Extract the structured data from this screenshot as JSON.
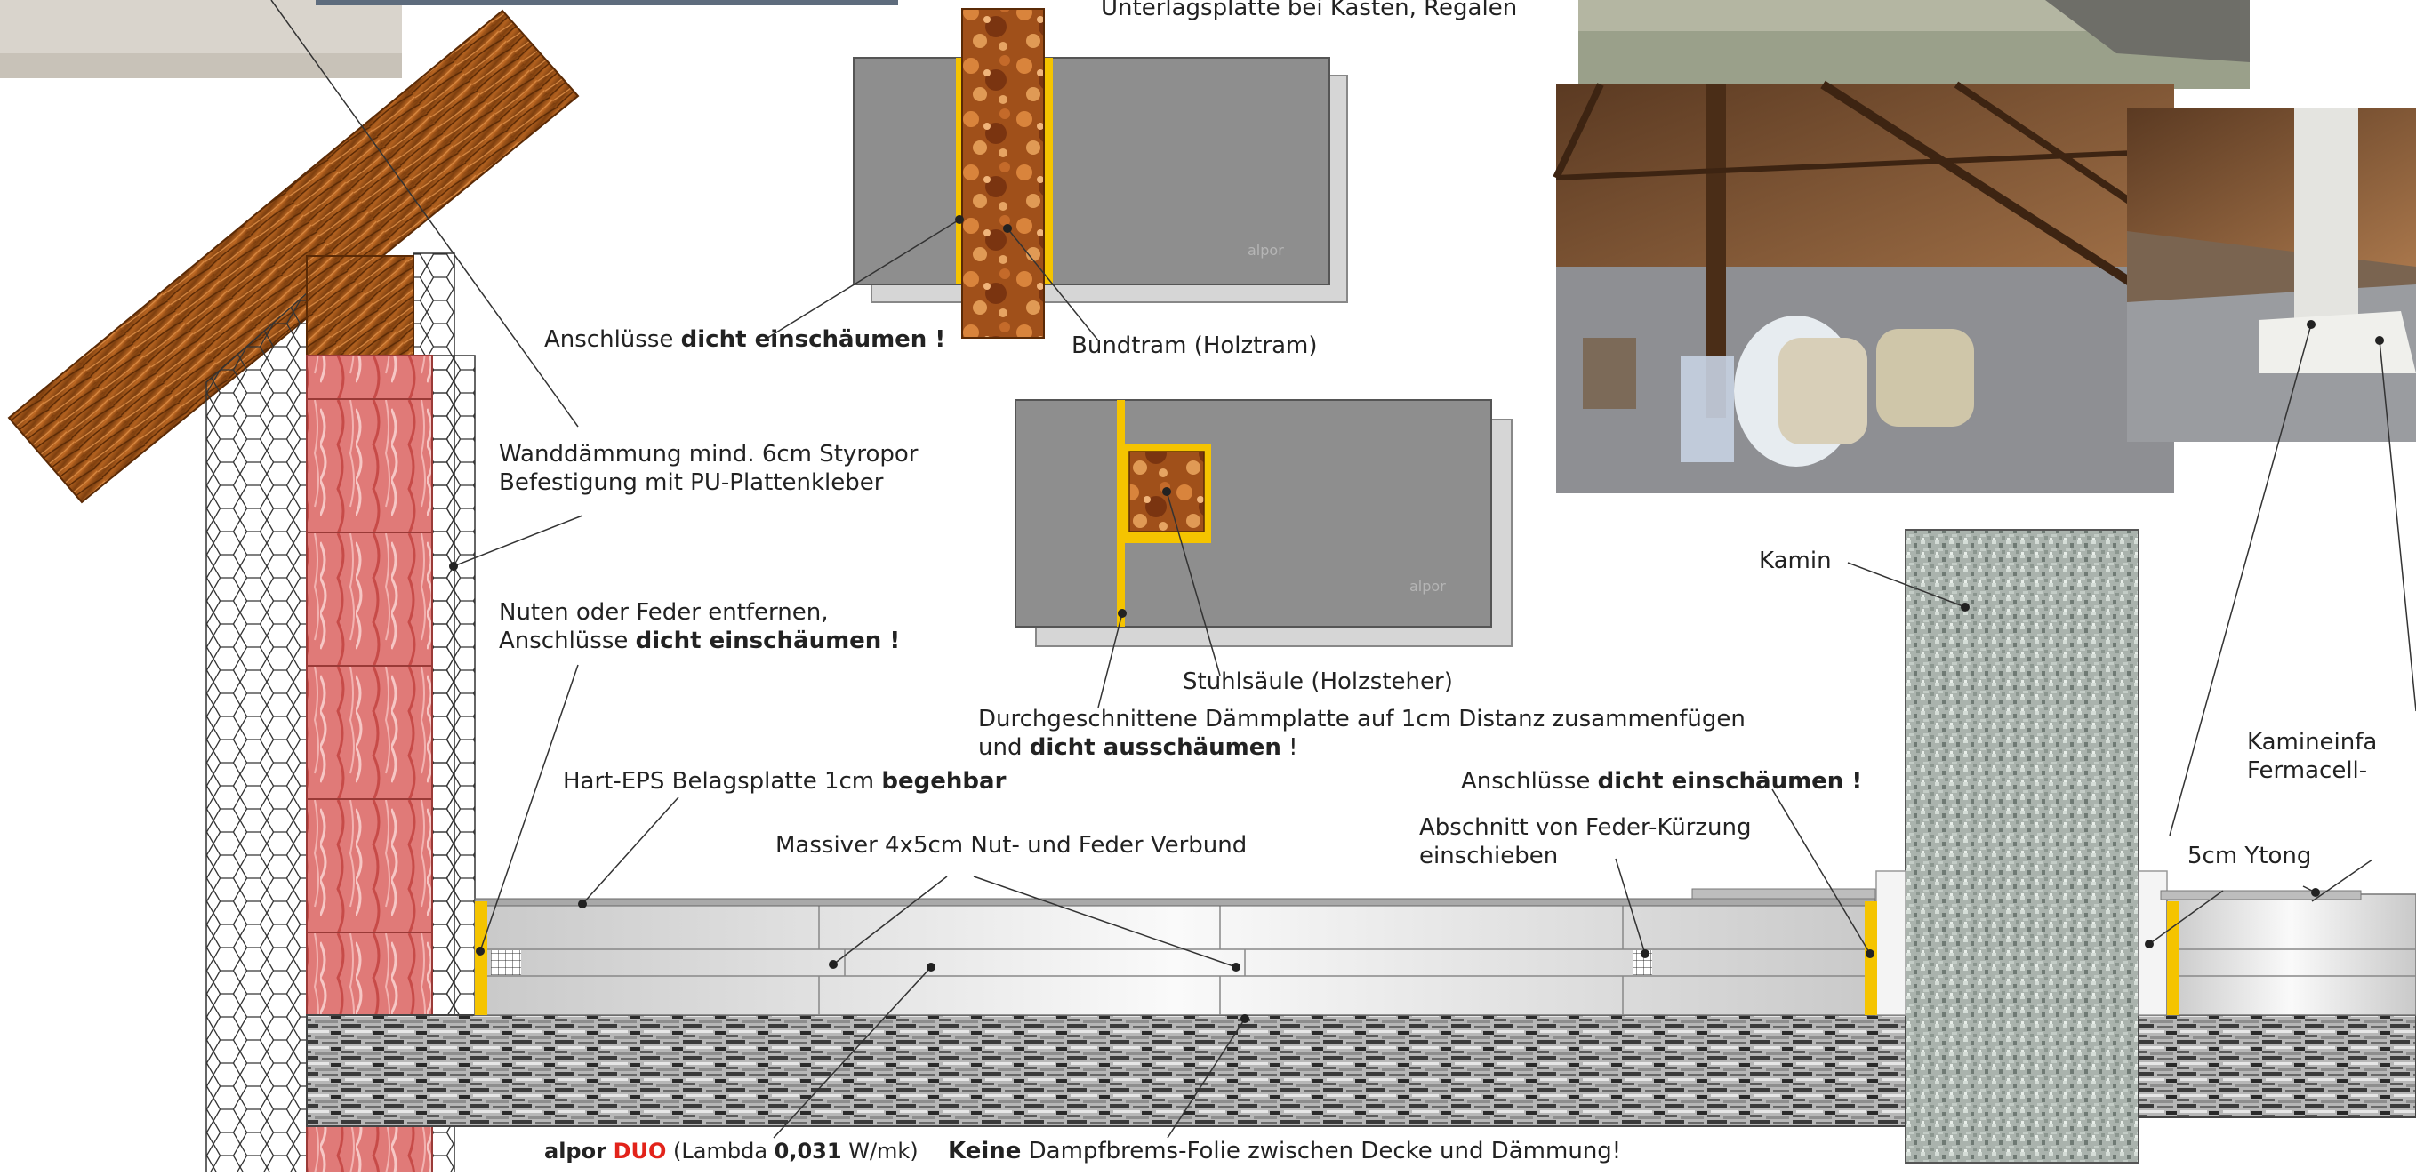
{
  "labels": {
    "regal": "Unterlagsplatte bei Kästen, Regalen",
    "anschluesse_left_pre": "Anschlüsse ",
    "anschluesse_left_bold": "dicht einschäumen !",
    "bundtram": "Bundtram (Holztram)",
    "wanddaemmung_1": "Wanddämmung mind. 6cm Styropor",
    "wanddaemmung_2": "Befestigung mit PU-Plattenkleber",
    "nuten_1": "Nuten oder Feder entfernen,",
    "nuten_2_pre": "Anschlüsse ",
    "nuten_2_bold": "dicht einschäumen !",
    "stuhlsaeule": "Stuhlsäule (Holzsteher)",
    "durchgeschnitten_1": "Durchgeschnittene Dämmplatte auf 1cm Distanz zusammenfügen",
    "durchgeschnitten_2_pre": "und ",
    "durchgeschnitten_2_bold": "dicht ausschäumen",
    "durchgeschnitten_2_post": " !",
    "hart_eps_pre": "Hart-EPS Belagsplatte 1cm ",
    "hart_eps_bold": "begehbar",
    "massiver": "Massiver 4x5cm Nut- und Feder Verbund",
    "kamin": "Kamin",
    "anschluesse_right_pre": "Anschlüsse ",
    "anschluesse_right_bold": "dicht einschäumen !",
    "abschnitt_1": "Abschnitt von Feder-Kürzung",
    "abschnitt_2": "einschieben",
    "ytong": "5cm Ytong",
    "kamineinfassung_1": "Kamineinfa",
    "kamineinfassung_2": "Fermacell-",
    "brand_alpor": "alpor",
    "brand_duo": "DUO",
    "brand_lambda_pre": "(Lambda ",
    "brand_lambda_value": "0,031",
    "brand_lambda_unit": " W/mk)",
    "keine_bold": "Keine",
    "keine_rest": " Dampfbrems-Folie zwischen Decke und Dämmung!",
    "panel_logo_1": "alpor",
    "panel_logo_2": "alpor"
  },
  "colors": {
    "foam": "#f5c400",
    "panel_dark": "#8d8d8d",
    "panel_light": "#d4d4d4",
    "brick": "#d9534f",
    "wood": "#8b4a12",
    "brand_red": "#e2231a"
  }
}
